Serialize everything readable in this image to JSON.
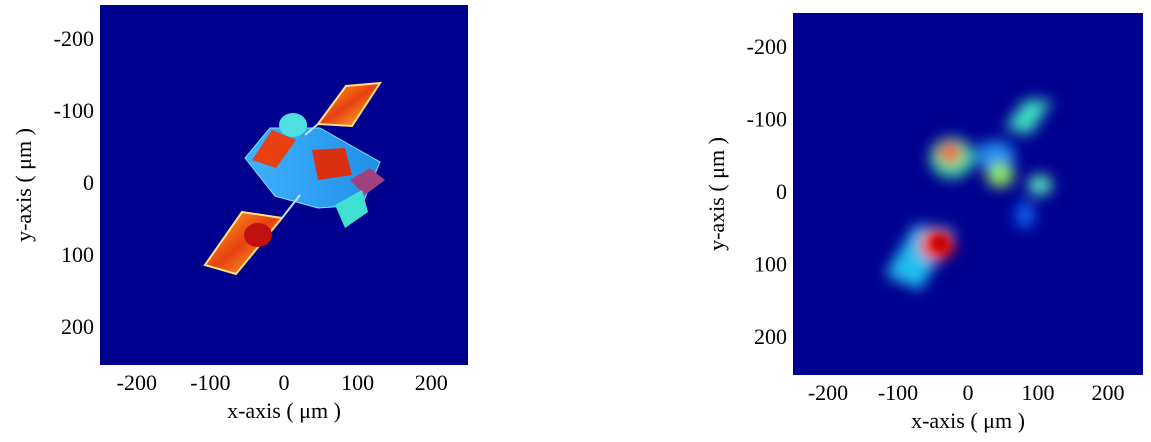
{
  "chart_data": [
    {
      "type": "image",
      "xlabel": "x-axis ( μm )",
      "ylabel": "y-axis ( μm )",
      "xlim": [
        -250,
        250
      ],
      "ylim": [
        -250,
        250
      ],
      "y_inverted": true,
      "xticks": [
        -200,
        -100,
        0,
        100,
        200
      ],
      "yticks": [
        -200,
        -100,
        0,
        100,
        200
      ],
      "background": "#00008f"
    },
    {
      "type": "image",
      "xlabel": "x-axis ( μm )",
      "ylabel": "y-axis ( μm )",
      "xlim": [
        -250,
        250
      ],
      "ylim": [
        -250,
        250
      ],
      "y_inverted": true,
      "xticks": [
        -200,
        -100,
        0,
        100,
        200
      ],
      "yticks": [
        -200,
        -100,
        0,
        100,
        200
      ],
      "background": "#00008f"
    }
  ]
}
